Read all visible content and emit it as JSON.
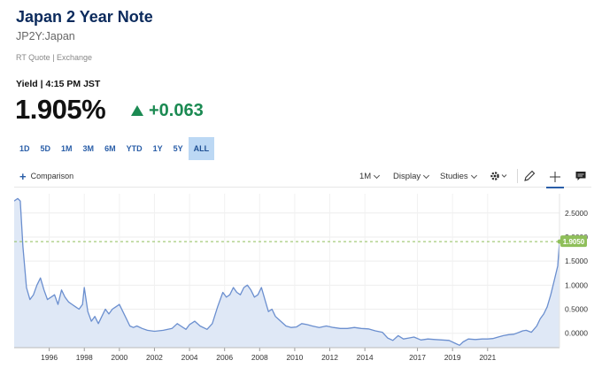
{
  "header": {
    "title": "Japan 2 Year Note",
    "symbol": "JP2Y:Japan",
    "quote_meta": "RT Quote | Exchange",
    "yield_line": "Yield | 4:15 PM JST",
    "price": "1.905%",
    "change": "+0.063"
  },
  "ranges": {
    "items": [
      "1D",
      "5D",
      "1M",
      "3M",
      "6M",
      "YTD",
      "1Y",
      "5Y",
      "ALL"
    ],
    "active": "ALL"
  },
  "toolbar": {
    "comparison_label": "Comparison",
    "interval_label": "1M",
    "display_label": "Display",
    "studies_label": "Studies",
    "icons": [
      "gear-icon",
      "pencil-icon",
      "crosshair-icon",
      "comment-icon"
    ]
  },
  "colors": {
    "title": "#0b2a5c",
    "accent_blue": "#2a5ea8",
    "positive": "#1b8a52",
    "line": "#6b8fcf",
    "area_fill": "#dfe8f6",
    "last_marker": "#8fbf5a"
  },
  "chart_data": {
    "type": "area",
    "ylim": [
      -0.3,
      2.9
    ],
    "y_ticks": [
      "2.5000",
      "2.0000",
      "1.5000",
      "1.0000",
      "0.5000",
      "0.0000"
    ],
    "x_ticks": [
      "1996",
      "1998",
      "2000",
      "2002",
      "2004",
      "2006",
      "2008",
      "2010",
      "2012",
      "2014",
      "2017",
      "2019",
      "2021"
    ],
    "last_value_label": "1.9050",
    "series": [
      {
        "x": [
          1994.0,
          1994.2,
          1994.35,
          1994.5,
          1994.7,
          1994.9,
          1995.1,
          1995.3,
          1995.5,
          1995.7,
          1995.9,
          1996.1,
          1996.3,
          1996.5,
          1996.7,
          1996.9,
          1997.1,
          1997.3,
          1997.5,
          1997.7,
          1997.9,
          1998.0,
          1998.2,
          1998.4,
          1998.6,
          1998.8,
          1999.0,
          1999.2,
          1999.4,
          1999.6,
          1999.8,
          2000.0,
          2000.2,
          2000.4,
          2000.6,
          2000.8,
          2001.0,
          2001.3,
          2001.6,
          2002.0,
          2002.5,
          2003.0,
          2003.3,
          2003.5,
          2003.8,
          2004.0,
          2004.3,
          2004.6,
          2005.0,
          2005.3,
          2005.6,
          2005.9,
          2006.1,
          2006.3,
          2006.5,
          2006.7,
          2006.9,
          2007.1,
          2007.3,
          2007.5,
          2007.7,
          2007.9,
          2008.1,
          2008.3,
          2008.5,
          2008.7,
          2008.9,
          2009.2,
          2009.5,
          2009.8,
          2010.1,
          2010.4,
          2010.7,
          2011.0,
          2011.4,
          2011.8,
          2012.2,
          2012.6,
          2013.0,
          2013.4,
          2013.8,
          2014.2,
          2014.6,
          2015.0,
          2015.3,
          2015.6,
          2015.9,
          2016.2,
          2016.5,
          2016.8,
          2017.2,
          2017.6,
          2018.0,
          2018.4,
          2018.8,
          2019.1,
          2019.4,
          2019.6,
          2019.9,
          2020.3,
          2020.7,
          2021.0,
          2021.3,
          2021.6,
          2021.9,
          2022.2,
          2022.5,
          2022.8,
          2023.0,
          2023.2,
          2023.5,
          2023.8,
          2024.0,
          2024.2,
          2024.4,
          2024.6,
          2024.8,
          2025.0,
          2025.1
        ],
        "y": [
          2.75,
          2.8,
          2.75,
          1.8,
          0.95,
          0.7,
          0.8,
          1.0,
          1.15,
          0.9,
          0.7,
          0.75,
          0.8,
          0.6,
          0.9,
          0.75,
          0.65,
          0.6,
          0.55,
          0.5,
          0.6,
          0.95,
          0.45,
          0.25,
          0.35,
          0.2,
          0.35,
          0.5,
          0.4,
          0.5,
          0.55,
          0.6,
          0.45,
          0.3,
          0.15,
          0.12,
          0.15,
          0.1,
          0.06,
          0.04,
          0.06,
          0.1,
          0.2,
          0.15,
          0.08,
          0.18,
          0.25,
          0.15,
          0.08,
          0.2,
          0.55,
          0.85,
          0.75,
          0.8,
          0.95,
          0.85,
          0.8,
          0.95,
          1.0,
          0.9,
          0.75,
          0.8,
          0.95,
          0.7,
          0.45,
          0.5,
          0.35,
          0.25,
          0.15,
          0.12,
          0.13,
          0.2,
          0.18,
          0.15,
          0.12,
          0.15,
          0.12,
          0.1,
          0.1,
          0.12,
          0.1,
          0.09,
          0.05,
          0.02,
          -0.1,
          -0.15,
          -0.05,
          -0.12,
          -0.1,
          -0.08,
          -0.14,
          -0.12,
          -0.13,
          -0.14,
          -0.15,
          -0.2,
          -0.25,
          -0.18,
          -0.12,
          -0.13,
          -0.12,
          -0.12,
          -0.11,
          -0.08,
          -0.05,
          -0.03,
          -0.02,
          0.02,
          0.05,
          0.06,
          0.02,
          0.15,
          0.3,
          0.4,
          0.55,
          0.8,
          1.1,
          1.4,
          1.905
        ]
      }
    ]
  }
}
